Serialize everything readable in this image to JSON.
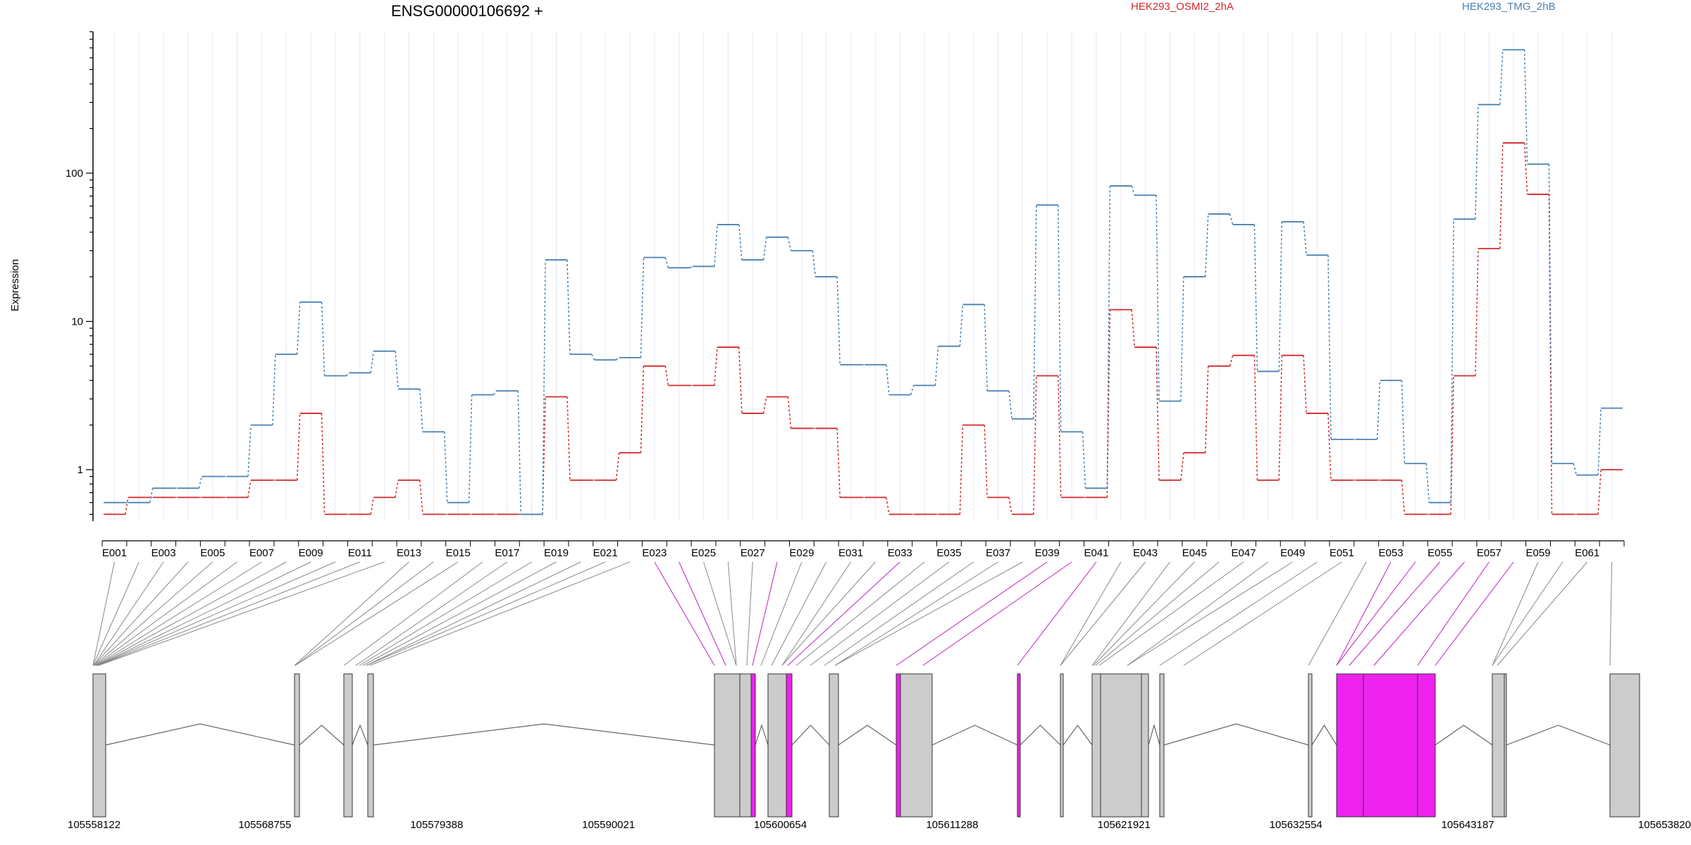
{
  "chart_data": {
    "type": "line",
    "title": "ENSG00000106692 +",
    "ylabel": "Expression",
    "xlabel": "",
    "yscale": "log",
    "ylim": [
      0.45,
      900
    ],
    "yticks": [
      1,
      10,
      100
    ],
    "ytick_labels": [
      "1",
      "10",
      "100"
    ],
    "legend_placement": "top",
    "categories": [
      "E001",
      "E002",
      "E003",
      "E004",
      "E005",
      "E006",
      "E007",
      "E008",
      "E009",
      "E010",
      "E011",
      "E012",
      "E013",
      "E014",
      "E015",
      "E016",
      "E017",
      "E018",
      "E019",
      "E020",
      "E021",
      "E022",
      "E023",
      "E024",
      "E025",
      "E026",
      "E027",
      "E028",
      "E029",
      "E030",
      "E031",
      "E032",
      "E033",
      "E034",
      "E035",
      "E036",
      "E037",
      "E038",
      "E039",
      "E040",
      "E041",
      "E042",
      "E043",
      "E044",
      "E045",
      "E046",
      "E047",
      "E048",
      "E049",
      "E050",
      "E051",
      "E052",
      "E053",
      "E054",
      "E055",
      "E056",
      "E057",
      "E058",
      "E059",
      "E060",
      "E061",
      "E062"
    ],
    "series": [
      {
        "name": "HEK293_OSMI2_2hA",
        "color": "#d62728",
        "values": [
          0.5,
          0.65,
          0.65,
          0.65,
          0.65,
          0.65,
          0.85,
          0.85,
          2.4,
          0.5,
          0.5,
          0.65,
          0.85,
          0.5,
          0.5,
          0.5,
          0.5,
          0.5,
          3.1,
          0.85,
          0.85,
          1.3,
          5.0,
          3.7,
          3.7,
          6.7,
          2.4,
          3.1,
          1.9,
          1.9,
          0.65,
          0.65,
          0.5,
          0.5,
          0.5,
          2.0,
          0.65,
          0.5,
          4.3,
          0.65,
          0.65,
          12.0,
          6.7,
          0.85,
          1.3,
          5.0,
          5.9,
          0.85,
          5.9,
          2.4,
          0.85,
          0.85,
          0.85,
          0.5,
          0.5,
          4.3,
          31,
          160,
          72,
          0.5,
          0.5,
          1.0
        ]
      },
      {
        "name": "HEK293_TMG_2hB",
        "color": "#4682b4",
        "values": [
          0.6,
          0.6,
          0.75,
          0.75,
          0.9,
          0.9,
          2.0,
          6.0,
          13.5,
          4.3,
          4.5,
          6.3,
          3.5,
          1.8,
          0.6,
          3.2,
          3.4,
          0.5,
          26,
          6.0,
          5.5,
          5.7,
          27,
          23,
          23.5,
          45,
          26,
          37,
          30,
          20,
          5.1,
          5.1,
          3.2,
          3.7,
          6.8,
          13,
          3.4,
          2.2,
          61,
          1.8,
          0.75,
          82,
          71,
          2.9,
          20,
          53,
          45,
          4.6,
          47,
          28,
          1.6,
          1.6,
          4.0,
          1.1,
          0.6,
          49,
          290,
          680,
          115,
          1.1,
          0.92,
          2.6
        ]
      }
    ],
    "gene_axis": {
      "tick_labels": [
        "105558122",
        "105568755",
        "105579388",
        "105590021",
        "105600654",
        "105611288",
        "105621921",
        "105632554",
        "105643187",
        "105653820"
      ],
      "range": [
        105558122,
        105653820
      ]
    }
  },
  "colors": {
    "intron_line": "#666666",
    "exon_fill": "#cccccc",
    "highlight_fill": "#ee22ee",
    "connector": "#888888",
    "connector_highlight": "#c020c0"
  }
}
